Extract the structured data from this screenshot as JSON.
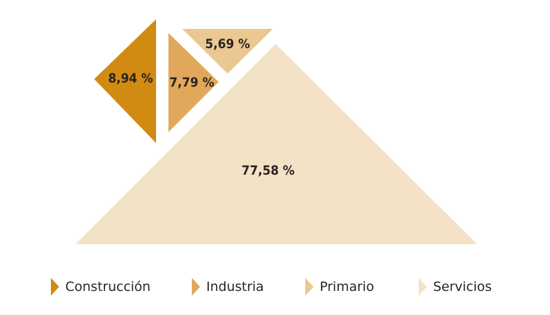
{
  "chart_data": {
    "type": "pie",
    "categories": [
      "Construcción",
      "Industria",
      "Primario",
      "Servicios"
    ],
    "values": [
      8.94,
      7.79,
      5.69,
      77.58
    ],
    "labels": [
      "8,94 %",
      "7,79 %",
      "5,69 %",
      "77,58 %"
    ],
    "colors": [
      "#D18A12",
      "#E1A85B",
      "#EBC891",
      "#F4E2C6"
    ],
    "legend_position": "bottom"
  }
}
